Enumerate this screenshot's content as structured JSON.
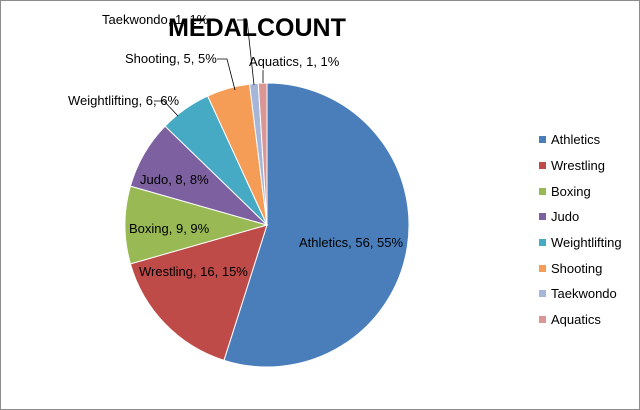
{
  "chart_data": {
    "type": "pie",
    "title": "MEDALCOUNT",
    "legend_position": "right",
    "slices": [
      {
        "name": "Athletics",
        "value": 56,
        "percent": "55%",
        "label": "Athletics, 56, 55%",
        "color": "#4a7ebb"
      },
      {
        "name": "Wrestling",
        "value": 16,
        "percent": "15%",
        "label": "Wrestling, 16, 15%",
        "color": "#be4b48"
      },
      {
        "name": "Boxing",
        "value": 9,
        "percent": "9%",
        "label": "Boxing, 9, 9%",
        "color": "#98b954"
      },
      {
        "name": "Judo",
        "value": 8,
        "percent": "8%",
        "label": "Judo, 8, 8%",
        "color": "#7d60a0"
      },
      {
        "name": "Weightlifting",
        "value": 6,
        "percent": "6%",
        "label": "Weightlifting, 6, 6%",
        "color": "#46aac5"
      },
      {
        "name": "Shooting",
        "value": 5,
        "percent": "5%",
        "label": "Shooting, 5, 5%",
        "color": "#f59d56"
      },
      {
        "name": "Taekwondo",
        "value": 1,
        "percent": "1%",
        "label": "Taekwondo, 1, 1%",
        "color": "#a5b6d8"
      },
      {
        "name": "Aquatics",
        "value": 1,
        "percent": "1%",
        "label": "Aquatics, 1, 1%",
        "color": "#d99694"
      }
    ]
  }
}
